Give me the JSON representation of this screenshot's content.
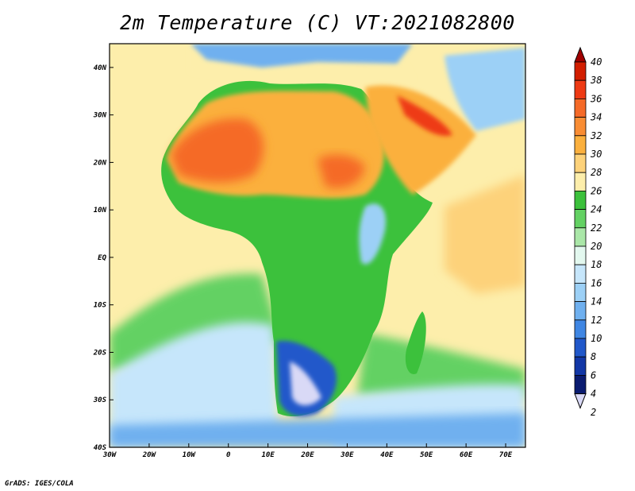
{
  "title": "2m Temperature (C) VT:2021082800",
  "footer": "GrADS: IGES/COLA",
  "axes": {
    "lon_labels": [
      "30W",
      "20W",
      "10W",
      "0",
      "10E",
      "20E",
      "30E",
      "40E",
      "50E",
      "60E",
      "70E"
    ],
    "lat_labels": [
      "40N",
      "30N",
      "20N",
      "10N",
      "EQ",
      "10S",
      "20S",
      "30S",
      "40S"
    ]
  },
  "colorbar": {
    "labels": [
      "40",
      "38",
      "36",
      "34",
      "32",
      "30",
      "28",
      "26",
      "24",
      "22",
      "20",
      "18",
      "16",
      "14",
      "12",
      "10",
      "8",
      "6",
      "4",
      "2"
    ],
    "colors": [
      "#a00000",
      "#d21e00",
      "#ee3a14",
      "#f56a28",
      "#f98d34",
      "#fbb03e",
      "#fdd27a",
      "#fdeeab",
      "#3cc13c",
      "#63d163",
      "#aae7a8",
      "#e3f8ef",
      "#c6e6fb",
      "#9cd0f6",
      "#6fb0ef",
      "#3f86e3",
      "#2158ca",
      "#1237a6",
      "#0a1b70",
      "#d9d9f6"
    ]
  },
  "regions": {
    "ocean-gulf-guinea": "#fdeeab",
    "south-atlantic": "#63d163",
    "southern-ocean": "#c6e6fb",
    "sahara": "#fbb03e",
    "sahel-hot": "#f56a28",
    "arabia-hot": "#ee3a14",
    "tropical-africa": "#3cc13c",
    "southern-africa-cold": "#2158ca",
    "highlands": "#9cd0f6",
    "indian-ocean": "#fdd27a",
    "mediterranean": "#fdeeab"
  }
}
